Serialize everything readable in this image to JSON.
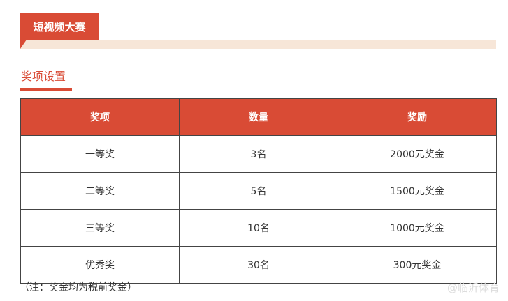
{
  "header": {
    "title": "短视频大赛"
  },
  "section": {
    "title": "奖项设置"
  },
  "table": {
    "columns": [
      "奖项",
      "数量",
      "奖励"
    ],
    "rows": [
      [
        "一等奖",
        "3名",
        "2000元奖金"
      ],
      [
        "二等奖",
        "5名",
        "1500元奖金"
      ],
      [
        "三等奖",
        "10名",
        "1000元奖金"
      ],
      [
        "优秀奖",
        "30名",
        "300元奖金"
      ]
    ]
  },
  "note": "（注：奖金均为税前奖金）",
  "watermark": "@临沂体育",
  "colors": {
    "accent": "#d94b35",
    "band": "#f7e6d8"
  }
}
